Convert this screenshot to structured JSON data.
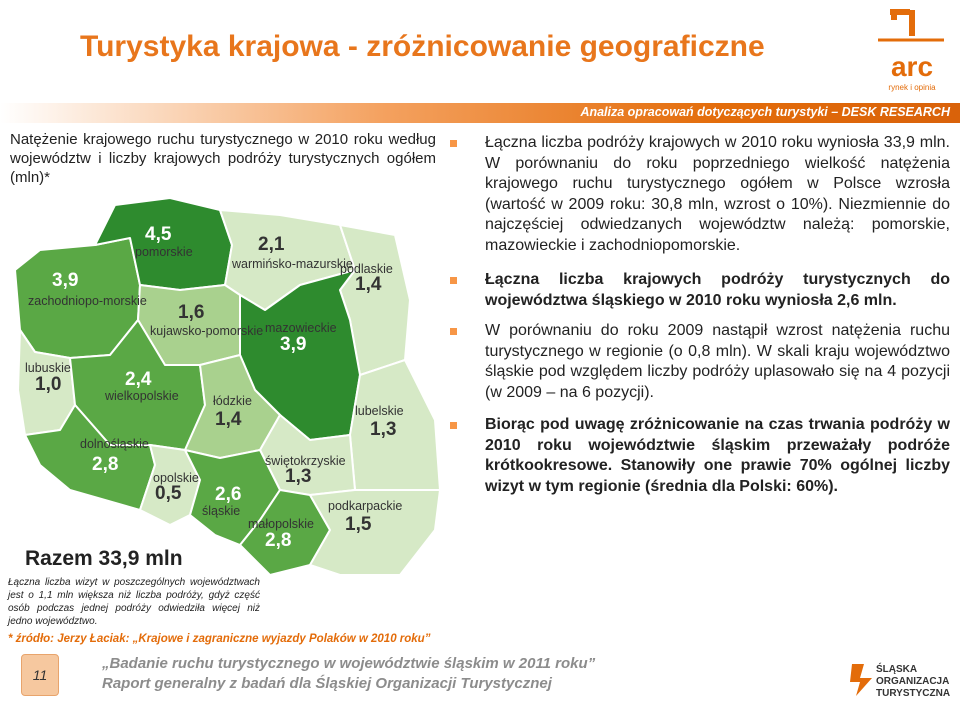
{
  "title": "Turystyka krajowa - zróżnicowanie geograficzne",
  "header_band": "Analiza opracowań dotyczących turystyki – DESK RESEARCH",
  "logo": {
    "name": "arc",
    "tagline": "rynek i opinia"
  },
  "chart": {
    "title": "Natężenie krajowego ruchu turystycznego w 2010 roku według województw i liczby krajowych podróży turystycznych ogółem (mln)*",
    "total": "Razem 33,9 mln"
  },
  "chart_data": {
    "type": "map",
    "title": "Natężenie krajowego ruchu turystycznego w 2010 roku według województw i liczby krajowych podróży turystycznych ogółem (mln)*",
    "unit": "mln",
    "total": 33.9,
    "regions": [
      {
        "name": "pomorskie",
        "value": "4,5"
      },
      {
        "name": "zachodniopo-morskie",
        "value": "3,9"
      },
      {
        "name": "warmińsko-mazurskie",
        "value": "2,1"
      },
      {
        "name": "podlaskie",
        "value": "1,4"
      },
      {
        "name": "kujawsko-pomorskie",
        "value": "1,6"
      },
      {
        "name": "mazowieckie",
        "value": "3,9"
      },
      {
        "name": "lubuskie",
        "value": "1,0"
      },
      {
        "name": "wielkopolskie",
        "value": "2,4"
      },
      {
        "name": "łódzkie",
        "value": "1,4"
      },
      {
        "name": "lubelskie",
        "value": "1,3"
      },
      {
        "name": "dolnośląskie",
        "value": "2,8"
      },
      {
        "name": "świętokrzyskie",
        "value": "1,3"
      },
      {
        "name": "opolskie",
        "value": "0,5"
      },
      {
        "name": "śląskie",
        "value": "2,6"
      },
      {
        "name": "małopolskie",
        "value": "2,8"
      },
      {
        "name": "podkarpackie",
        "value": "1,5"
      }
    ]
  },
  "note": "Łączna liczba wizyt w poszczególnych województwach jest o 1,1 mln większa niż liczba podróży, gdyż część osób podczas jednej podróży odwiedziła więcej niż jedno województwo.",
  "source": "* źródło: Jerzy Łaciak: „Krajowe i zagraniczne wyjazdy Polaków w 2010 roku”",
  "page_number": "11",
  "footer": {
    "line1": "„Badanie ruchu turystycznego w województwie śląskim w 2011 roku”",
    "line2": "Raport generalny z badań dla Śląskiej Organizacji Turystycznej"
  },
  "org_logo": {
    "line1": "ŚLĄSKA",
    "line2": "ORGANIZACJA",
    "line3": "TURYSTYCZNA"
  },
  "bullets": [
    {
      "text": "Łączna liczba podróży krajowych w 2010 roku wyniosła 33,9 mln. W porównaniu do roku poprzedniego wielkość natężenia krajowego ruchu turystycznego ogółem w Polsce wzrosła (wartość w 2009 roku: 30,8 mln, wzrost o 10%). Niezmiennie do najczęściej odwiedzanych województw należą: pomorskie, mazowieckie i zachodniopomorskie."
    },
    {
      "text": "Łączna liczba krajowych podróży turystycznych do województwa śląskiego w 2010 roku wyniosła 2,6 mln."
    },
    {
      "text": "W porównaniu do roku 2009 nastąpił wzrost natężenia ruchu turystycznego w regionie (o 0,8 mln). W skali kraju województwo śląskie pod względem liczby podróży uplasowało się na 4 pozycji (w 2009 – na 6 pozycji)."
    },
    {
      "text": "Biorąc pod uwagę zróżnicowanie na czas trwania podróży w 2010 roku województwie śląskim przeważały podróże krótkookresowe. Stanowiły one prawie 70% ogólnej liczby wizyt w tym regionie (średnia dla Polski: 60%)."
    }
  ],
  "colors": {
    "title": "#e8761c",
    "band": "#e36c0a",
    "bullet": "#f79646",
    "dark_green": "#2e8b2e",
    "mid_green": "#5aa845",
    "light_green": "#a9d18e",
    "pale_green": "#d6e9c6"
  }
}
